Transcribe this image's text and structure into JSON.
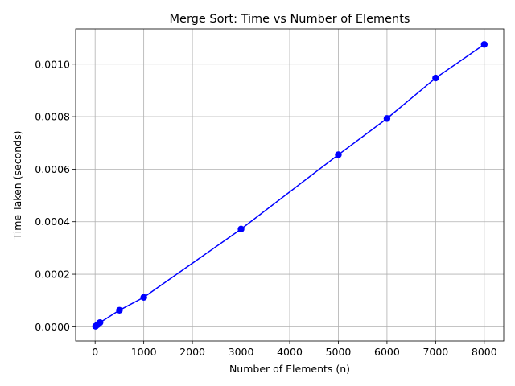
{
  "chart_data": {
    "type": "line",
    "title": "Merge Sort: Time vs Number of Elements",
    "xlabel": "Number of Elements (n)",
    "ylabel": "Time Taken (seconds)",
    "xlim": [
      -400,
      8400
    ],
    "ylim": [
      -5.4e-05,
      0.001134
    ],
    "xticks": [
      0,
      1000,
      2000,
      3000,
      4000,
      5000,
      6000,
      7000,
      8000
    ],
    "xtick_labels": [
      "0",
      "1000",
      "2000",
      "3000",
      "4000",
      "5000",
      "6000",
      "7000",
      "8000"
    ],
    "yticks": [
      0,
      0.0002,
      0.0004,
      0.0006,
      0.0008,
      0.001
    ],
    "ytick_labels": [
      "0.0000",
      "0.0002",
      "0.0004",
      "0.0006",
      "0.0008",
      "0.0010"
    ],
    "grid": true,
    "series": [
      {
        "color": "#0000ff",
        "marker": "circle",
        "x": [
          10,
          50,
          100,
          500,
          1000,
          3000,
          5000,
          6000,
          7000,
          8000
        ],
        "y": [
          2e-06,
          8e-06,
          1.6e-05,
          6.3e-05,
          0.000112,
          0.000372,
          0.000655,
          0.000793,
          0.000947,
          0.001075
        ]
      }
    ]
  }
}
